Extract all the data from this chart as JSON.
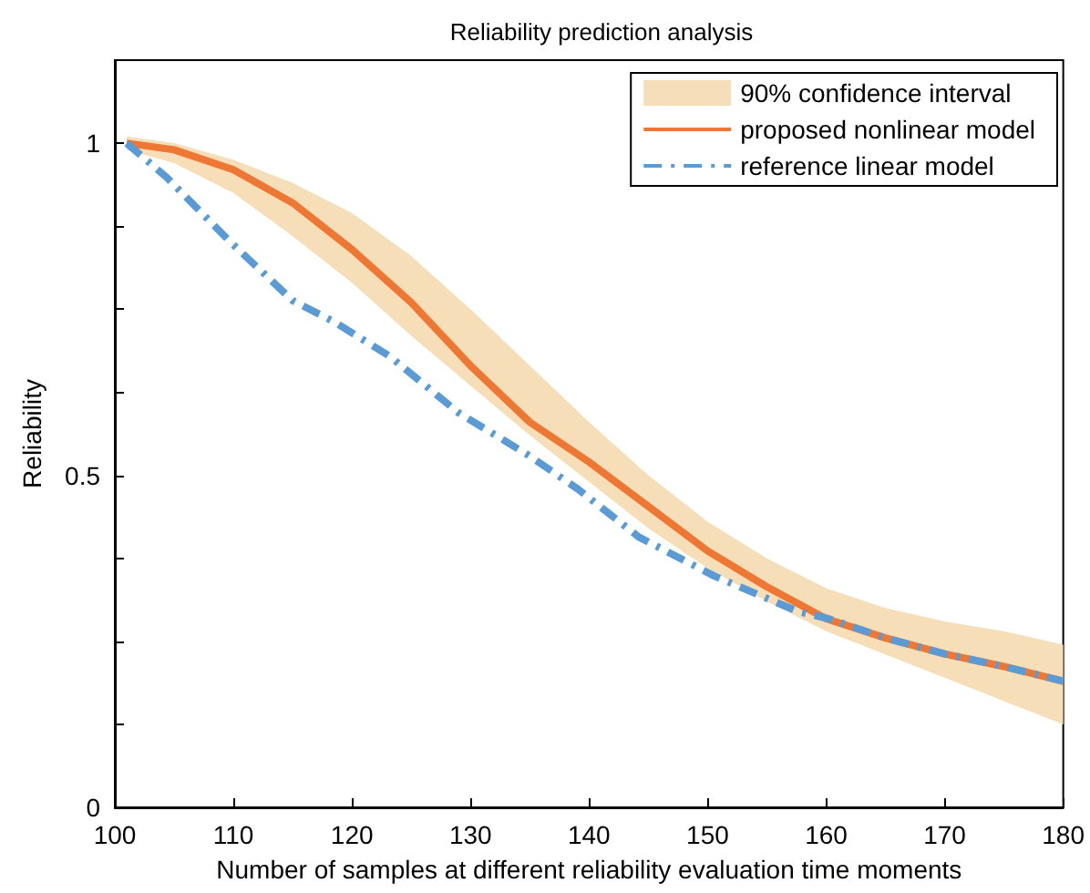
{
  "chart_data": {
    "type": "line",
    "title": "Reliability prediction analysis",
    "xlabel": "Number of samples at different reliability evaluation time moments",
    "ylabel": "Reliability",
    "xlim": [
      100,
      180
    ],
    "xticks": [
      100,
      110,
      120,
      130,
      140,
      150,
      160,
      170,
      180
    ],
    "ylim": [
      0,
      1.125
    ],
    "yticks": [
      0,
      {
        "value": 0.125,
        "label": null
      },
      {
        "value": 0.25,
        "label": null
      },
      {
        "value": 0.375,
        "label": null
      },
      0.5,
      {
        "value": 0.625,
        "label": null
      },
      {
        "value": 0.75,
        "label": null
      },
      {
        "value": 0.875,
        "label": null
      },
      1
    ],
    "grid": false,
    "legend": "top right",
    "marker": "none",
    "annotations": [
      "90% confidence interval"
    ],
    "series": [
      {
        "name": "proposed nonlinear model",
        "color": "#ee7733",
        "line_style": "solid",
        "x": [
          101,
          105,
          110,
          115,
          120,
          125,
          130,
          135,
          140,
          145,
          150,
          155,
          160,
          165,
          170,
          175,
          180
        ],
        "values": [
          1,
          0.99,
          0.96,
          0.91,
          0.84,
          0.76,
          0.665,
          0.58,
          0.52,
          0.453,
          0.386,
          0.332,
          0.284,
          0.255,
          0.231,
          0.212,
          0.19
        ],
        "lower": [
          0.99,
          0.97,
          0.925,
          0.86,
          0.79,
          0.71,
          0.635,
          0.56,
          0.49,
          0.42,
          0.36,
          0.31,
          0.265,
          0.23,
          0.195,
          0.16,
          0.125
        ],
        "upper": [
          1.01,
          1.0,
          0.975,
          0.94,
          0.895,
          0.83,
          0.75,
          0.665,
          0.58,
          0.5,
          0.43,
          0.375,
          0.33,
          0.3,
          0.28,
          0.265,
          0.245
        ]
      },
      {
        "name": "reference linear model",
        "color": "#5b9bd5",
        "line_style": "dashed",
        "x": [
          101,
          104.4,
          109.7,
          115,
          118.5,
          123.2,
          129,
          134.9,
          139,
          144.2,
          150.6,
          157.6,
          160.2,
          165,
          170,
          175,
          180
        ],
        "values": [
          1,
          0.948,
          0.852,
          0.763,
          0.731,
          0.679,
          0.594,
          0.53,
          0.48,
          0.407,
          0.348,
          0.295,
          0.284,
          0.255,
          0.231,
          0.212,
          0.19
        ]
      }
    ]
  }
}
